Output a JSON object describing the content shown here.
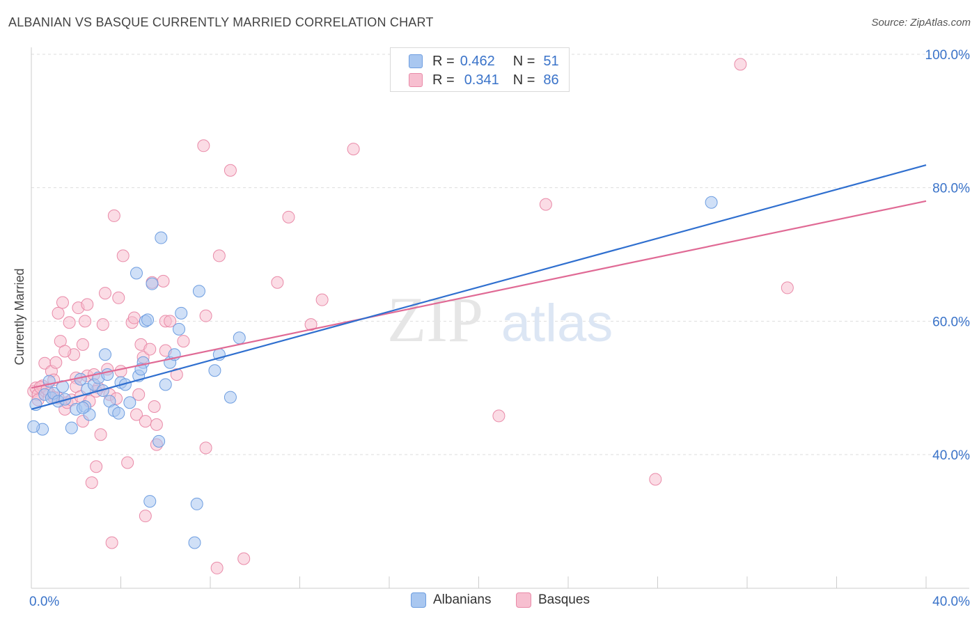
{
  "title": "ALBANIAN VS BASQUE CURRENTLY MARRIED CORRELATION CHART",
  "source": "Source: ZipAtlas.com",
  "legend": {
    "rows": [
      {
        "r_label": "R =",
        "r_value": "0.462",
        "n_label": "N =",
        "n_value": "51"
      },
      {
        "r_label": "R =",
        "r_value": "0.341",
        "n_label": "N =",
        "n_value": "86"
      }
    ]
  },
  "bottom_legend": {
    "albanians": "Albanians",
    "basques": "Basques"
  },
  "colors": {
    "albanian_fill": "#a9c7f0",
    "albanian_stroke": "#6d9de0",
    "albanian_line": "#2f6fcf",
    "basque_fill": "#f7bfd0",
    "basque_stroke": "#e98aa8",
    "basque_line": "#e06a95",
    "axis_text": "#3a73c9",
    "grid": "#dddddd"
  },
  "chart_data": {
    "type": "scatter",
    "title": "ALBANIAN VS BASQUE CURRENTLY MARRIED CORRELATION CHART",
    "xlabel": "",
    "ylabel": "Currently Married",
    "xlim": [
      0,
      40
    ],
    "ylim": [
      22,
      102
    ],
    "x_tick_labels": [
      "0.0%",
      "40.0%"
    ],
    "y_ticks": [
      40,
      60,
      80,
      100
    ],
    "y_tick_labels": [
      "40.0%",
      "60.0%",
      "80.0%",
      "100.0%"
    ],
    "watermark": {
      "zip": "ZIP",
      "atlas": "atlas"
    },
    "series": [
      {
        "name": "Albanians",
        "r": 0.462,
        "n": 51,
        "trend": {
          "x": [
            0.0,
            40.0
          ],
          "y": [
            46.8,
            83.4
          ]
        },
        "points": [
          [
            0.2,
            47.5
          ],
          [
            0.5,
            43.8
          ],
          [
            0.6,
            49.0
          ],
          [
            0.8,
            51.0
          ],
          [
            0.9,
            48.5
          ],
          [
            1.0,
            49.2
          ],
          [
            1.2,
            48.0
          ],
          [
            1.4,
            50.2
          ],
          [
            1.5,
            48.3
          ],
          [
            1.8,
            44.0
          ],
          [
            2.0,
            46.8
          ],
          [
            2.2,
            51.3
          ],
          [
            2.4,
            47.2
          ],
          [
            2.5,
            49.8
          ],
          [
            2.6,
            46.0
          ],
          [
            2.8,
            50.5
          ],
          [
            3.0,
            51.5
          ],
          [
            3.2,
            49.6
          ],
          [
            3.3,
            55.0
          ],
          [
            3.4,
            52.0
          ],
          [
            3.5,
            48.0
          ],
          [
            3.7,
            46.6
          ],
          [
            3.9,
            46.2
          ],
          [
            4.0,
            50.8
          ],
          [
            4.2,
            50.5
          ],
          [
            4.4,
            47.8
          ],
          [
            4.7,
            67.2
          ],
          [
            4.8,
            51.8
          ],
          [
            5.0,
            53.8
          ],
          [
            5.1,
            60.0
          ],
          [
            5.4,
            65.6
          ],
          [
            5.7,
            42.0
          ],
          [
            5.8,
            72.5
          ],
          [
            6.0,
            50.5
          ],
          [
            6.2,
            53.8
          ],
          [
            6.4,
            55.0
          ],
          [
            6.6,
            58.8
          ],
          [
            6.7,
            61.2
          ],
          [
            7.5,
            64.5
          ],
          [
            8.2,
            52.6
          ],
          [
            8.4,
            55.0
          ],
          [
            8.9,
            48.6
          ],
          [
            9.3,
            57.5
          ],
          [
            5.3,
            33.0
          ],
          [
            7.4,
            32.6
          ],
          [
            7.3,
            26.8
          ],
          [
            5.2,
            60.2
          ],
          [
            4.9,
            52.8
          ],
          [
            2.3,
            47.0
          ],
          [
            30.4,
            77.8
          ],
          [
            0.1,
            44.2
          ]
        ]
      },
      {
        "name": "Basques",
        "r": 0.341,
        "n": 86,
        "trend": {
          "x": [
            0.0,
            40.0
          ],
          "y": [
            50.0,
            78.0
          ]
        },
        "points": [
          [
            0.1,
            49.5
          ],
          [
            0.2,
            50.0
          ],
          [
            0.3,
            49.0
          ],
          [
            0.5,
            50.3
          ],
          [
            0.6,
            53.7
          ],
          [
            0.8,
            49.2
          ],
          [
            0.9,
            52.5
          ],
          [
            1.0,
            51.2
          ],
          [
            1.1,
            53.8
          ],
          [
            1.2,
            48.5
          ],
          [
            1.2,
            61.2
          ],
          [
            1.3,
            57.0
          ],
          [
            1.4,
            62.8
          ],
          [
            1.5,
            46.8
          ],
          [
            1.6,
            47.8
          ],
          [
            1.7,
            59.8
          ],
          [
            1.8,
            48.2
          ],
          [
            1.9,
            55.0
          ],
          [
            2.0,
            51.5
          ],
          [
            2.0,
            50.2
          ],
          [
            2.1,
            62.0
          ],
          [
            2.2,
            48.7
          ],
          [
            2.3,
            56.5
          ],
          [
            2.3,
            45.0
          ],
          [
            2.4,
            60.0
          ],
          [
            2.5,
            51.8
          ],
          [
            2.5,
            62.5
          ],
          [
            2.6,
            48.0
          ],
          [
            2.7,
            35.8
          ],
          [
            2.8,
            52.0
          ],
          [
            2.9,
            38.2
          ],
          [
            3.0,
            50.0
          ],
          [
            3.1,
            43.0
          ],
          [
            3.2,
            59.5
          ],
          [
            3.3,
            64.2
          ],
          [
            3.4,
            52.8
          ],
          [
            3.5,
            49.0
          ],
          [
            3.6,
            26.8
          ],
          [
            3.7,
            75.8
          ],
          [
            3.9,
            63.5
          ],
          [
            4.0,
            52.5
          ],
          [
            4.1,
            69.8
          ],
          [
            4.3,
            38.8
          ],
          [
            4.5,
            59.8
          ],
          [
            4.6,
            60.5
          ],
          [
            4.7,
            46.0
          ],
          [
            4.8,
            49.0
          ],
          [
            4.9,
            56.5
          ],
          [
            5.0,
            54.6
          ],
          [
            5.1,
            45.0
          ],
          [
            5.1,
            30.8
          ],
          [
            5.3,
            55.8
          ],
          [
            5.4,
            65.8
          ],
          [
            5.5,
            47.2
          ],
          [
            5.6,
            41.5
          ],
          [
            5.6,
            44.5
          ],
          [
            5.9,
            66.0
          ],
          [
            6.0,
            60.0
          ],
          [
            6.0,
            55.6
          ],
          [
            6.2,
            60.0
          ],
          [
            6.5,
            52.0
          ],
          [
            6.8,
            57.0
          ],
          [
            7.7,
            86.3
          ],
          [
            7.8,
            41.0
          ],
          [
            7.8,
            60.8
          ],
          [
            8.3,
            23.0
          ],
          [
            8.4,
            69.8
          ],
          [
            8.9,
            82.6
          ],
          [
            9.5,
            24.4
          ],
          [
            11.0,
            65.8
          ],
          [
            11.5,
            75.6
          ],
          [
            12.5,
            59.5
          ],
          [
            13.0,
            63.2
          ],
          [
            14.4,
            85.8
          ],
          [
            20.9,
            45.8
          ],
          [
            23.0,
            77.5
          ],
          [
            27.9,
            36.3
          ],
          [
            31.7,
            98.5
          ],
          [
            33.8,
            65.0
          ],
          [
            0.4,
            50.1
          ],
          [
            0.7,
            49.8
          ],
          [
            1.0,
            48.6
          ],
          [
            2.9,
            49.5
          ],
          [
            3.8,
            48.4
          ],
          [
            0.3,
            48.2
          ],
          [
            1.5,
            55.5
          ]
        ]
      }
    ]
  }
}
